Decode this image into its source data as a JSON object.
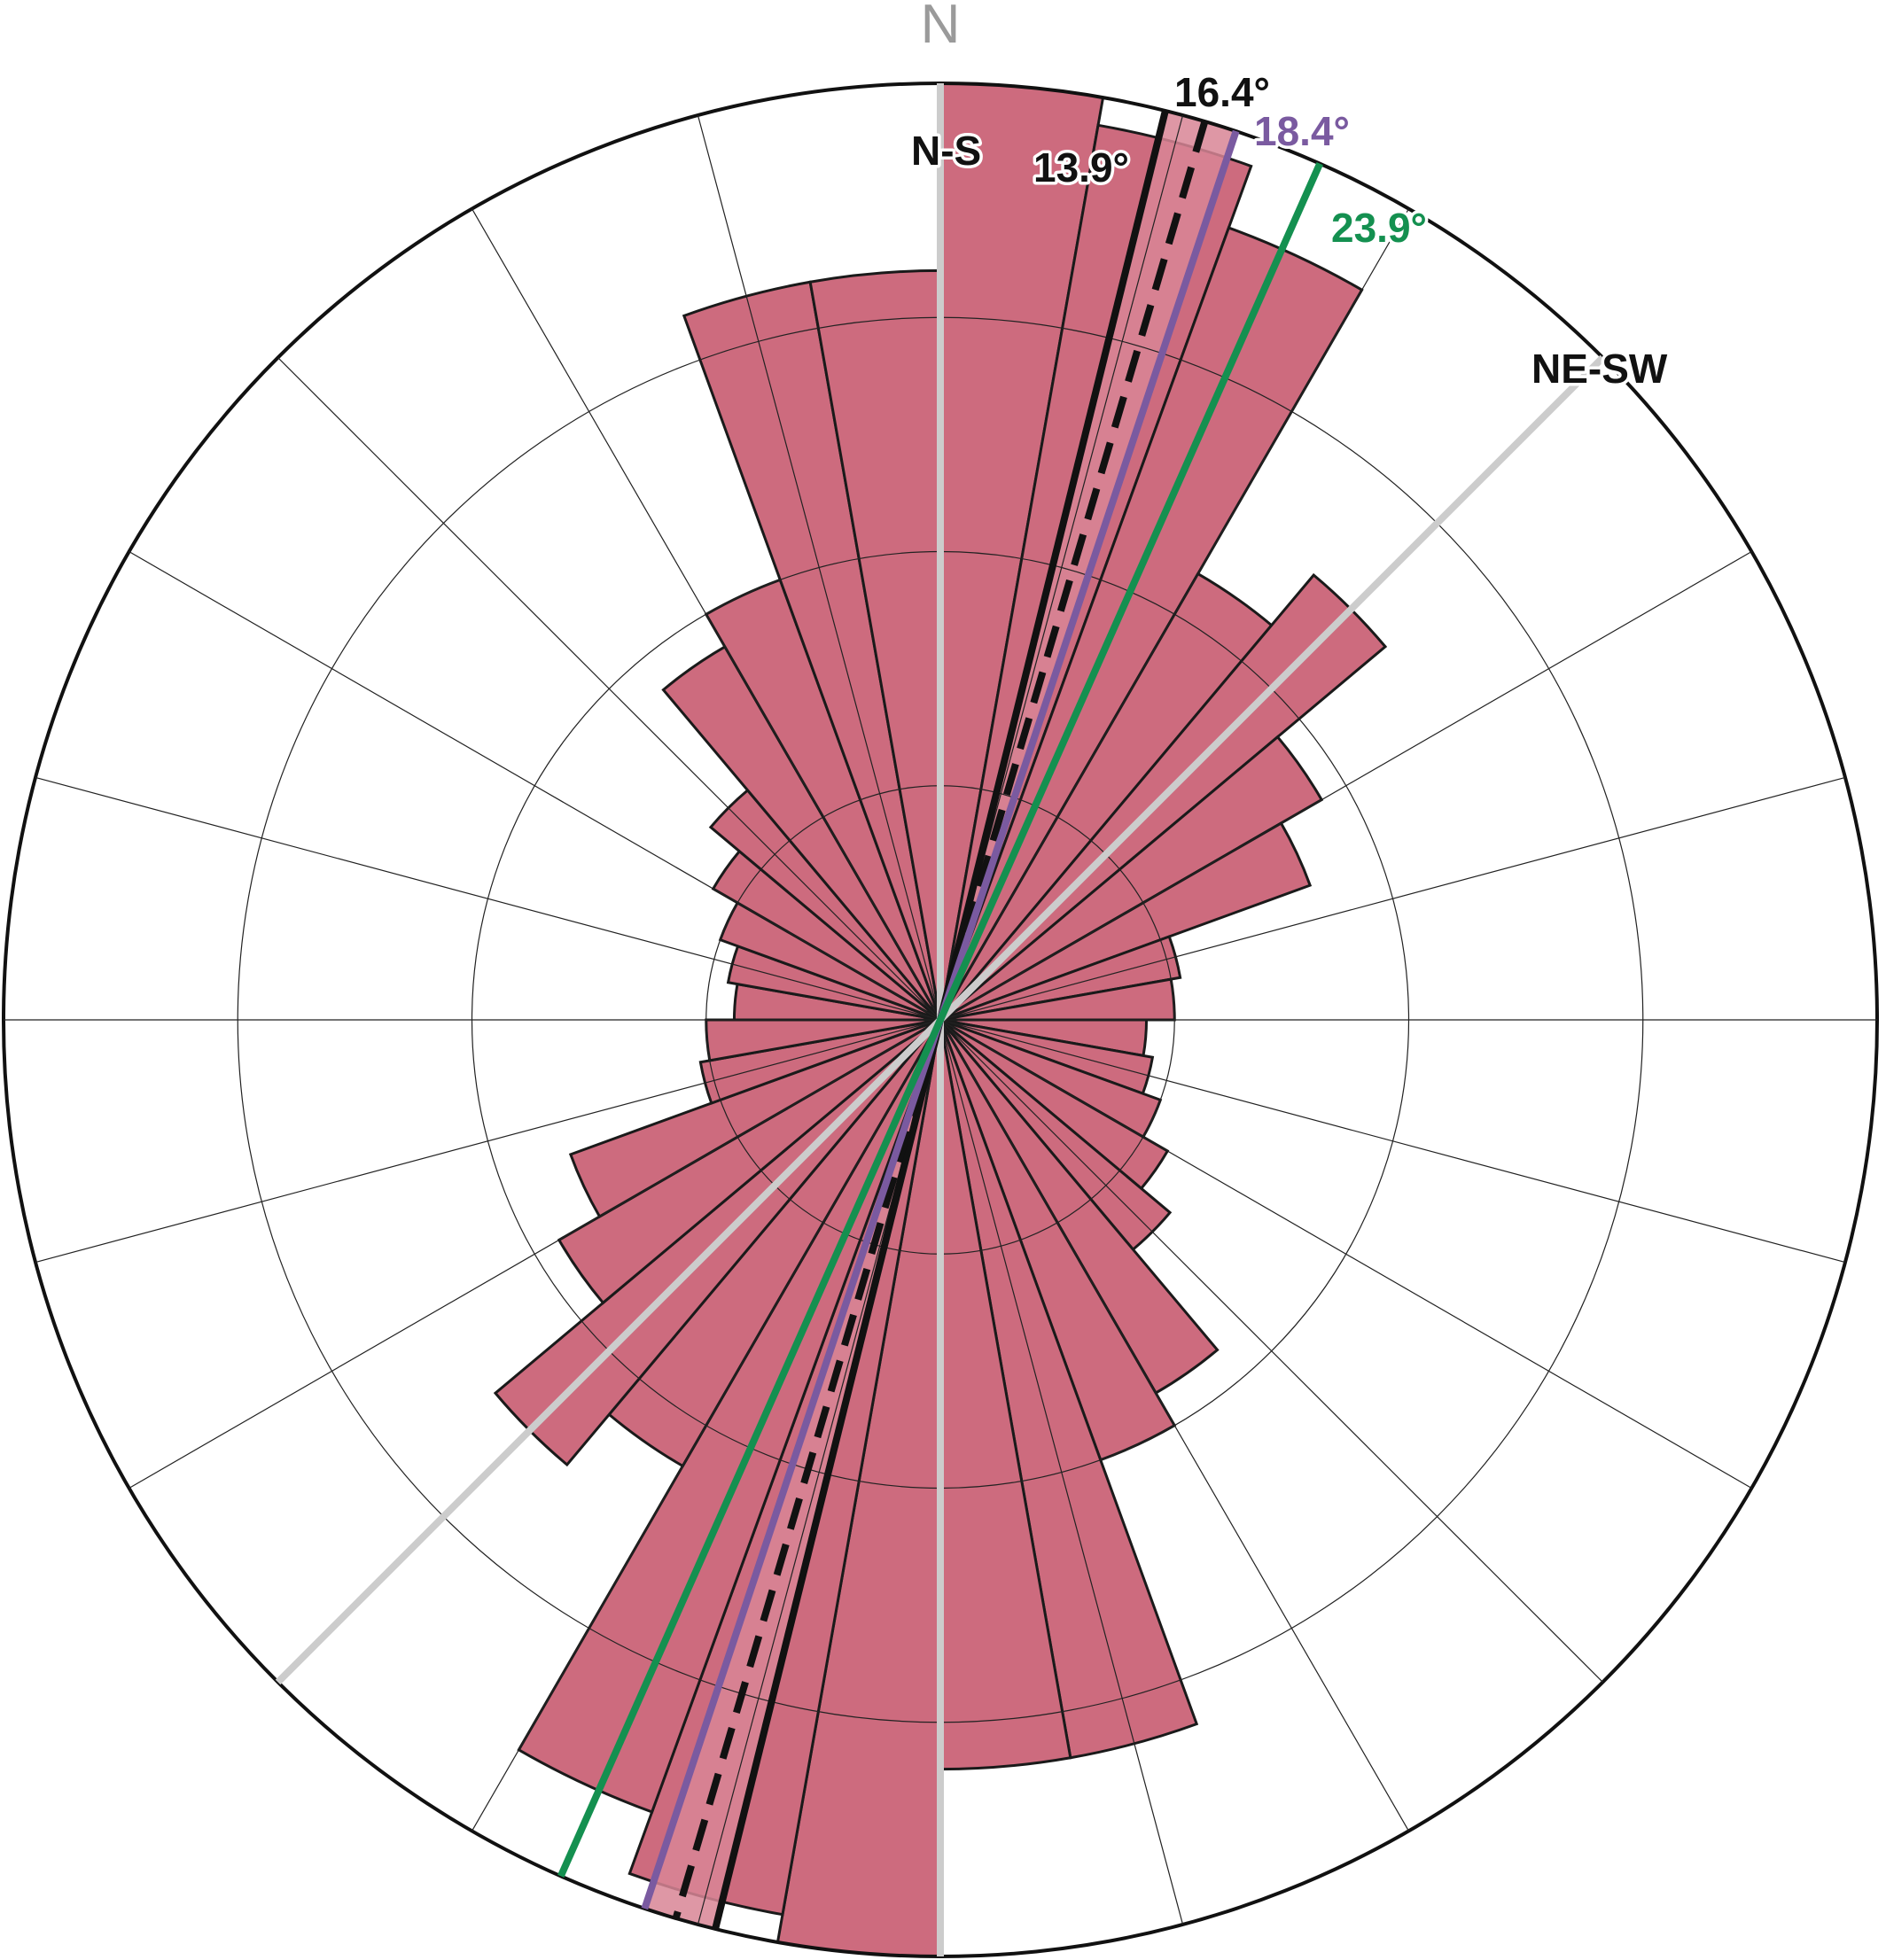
{
  "chart_data": {
    "type": "rose",
    "bin_width_deg": 10,
    "bins": [
      {
        "from": 0,
        "to": 10,
        "value": 1.0
      },
      {
        "from": 10,
        "to": 20,
        "value": 0.97
      },
      {
        "from": 20,
        "to": 30,
        "value": 0.9
      },
      {
        "from": 30,
        "to": 40,
        "value": 0.55
      },
      {
        "from": 40,
        "to": 50,
        "value": 0.62
      },
      {
        "from": 50,
        "to": 60,
        "value": 0.47
      },
      {
        "from": 60,
        "to": 70,
        "value": 0.42
      },
      {
        "from": 70,
        "to": 80,
        "value": 0.26
      },
      {
        "from": 80,
        "to": 90,
        "value": 0.25
      },
      {
        "from": 90,
        "to": 100,
        "value": 0.22
      },
      {
        "from": 100,
        "to": 110,
        "value": 0.23
      },
      {
        "from": 110,
        "to": 120,
        "value": 0.25
      },
      {
        "from": 120,
        "to": 130,
        "value": 0.28
      },
      {
        "from": 130,
        "to": 140,
        "value": 0.32
      },
      {
        "from": 140,
        "to": 150,
        "value": 0.46
      },
      {
        "from": 150,
        "to": 160,
        "value": 0.5
      },
      {
        "from": 160,
        "to": 170,
        "value": 0.8
      },
      {
        "from": 170,
        "to": 180,
        "value": 0.8
      },
      {
        "from": 180,
        "to": 190,
        "value": 1.0
      },
      {
        "from": 190,
        "to": 200,
        "value": 0.97
      },
      {
        "from": 200,
        "to": 210,
        "value": 0.9
      },
      {
        "from": 210,
        "to": 220,
        "value": 0.55
      },
      {
        "from": 220,
        "to": 230,
        "value": 0.62
      },
      {
        "from": 230,
        "to": 240,
        "value": 0.47
      },
      {
        "from": 240,
        "to": 250,
        "value": 0.42
      },
      {
        "from": 250,
        "to": 260,
        "value": 0.26
      },
      {
        "from": 260,
        "to": 270,
        "value": 0.25
      },
      {
        "from": 270,
        "to": 280,
        "value": 0.22
      },
      {
        "from": 280,
        "to": 290,
        "value": 0.23
      },
      {
        "from": 290,
        "to": 300,
        "value": 0.25
      },
      {
        "from": 300,
        "to": 310,
        "value": 0.28
      },
      {
        "from": 310,
        "to": 320,
        "value": 0.32
      },
      {
        "from": 320,
        "to": 330,
        "value": 0.46
      },
      {
        "from": 330,
        "to": 340,
        "value": 0.5
      },
      {
        "from": 340,
        "to": 350,
        "value": 0.8
      },
      {
        "from": 350,
        "to": 360,
        "value": 0.8
      }
    ],
    "max_value": 1.0,
    "rings": [
      0.25,
      0.5,
      0.75,
      1.0
    ],
    "spoke_interval_deg": 15,
    "grid": true,
    "north_label": "N",
    "reference_lines": [
      {
        "label": "N-S",
        "azimuth": 0,
        "color": "#cccccc"
      },
      {
        "label": "NE-SW",
        "azimuth": 45,
        "color": "#cccccc"
      }
    ],
    "mean_directions": [
      {
        "label": "13.9°",
        "azimuth": 13.9,
        "color": "#111111",
        "style": "solid"
      },
      {
        "label": "16.4°",
        "azimuth": 16.4,
        "color": "#111111",
        "style": "dashed"
      },
      {
        "label": "18.4°",
        "azimuth": 18.4,
        "color": "#7a5aa0",
        "style": "solid"
      },
      {
        "label": "23.9°",
        "azimuth": 23.9,
        "color": "#149050",
        "style": "solid"
      }
    ],
    "confidence_wedge": {
      "from": 13.9,
      "to": 18.4
    },
    "colors": {
      "petal_fill": "#cd6b7e",
      "petal_stroke": "#1a1a1a",
      "grid": "#222222",
      "frame": "#111111"
    }
  }
}
